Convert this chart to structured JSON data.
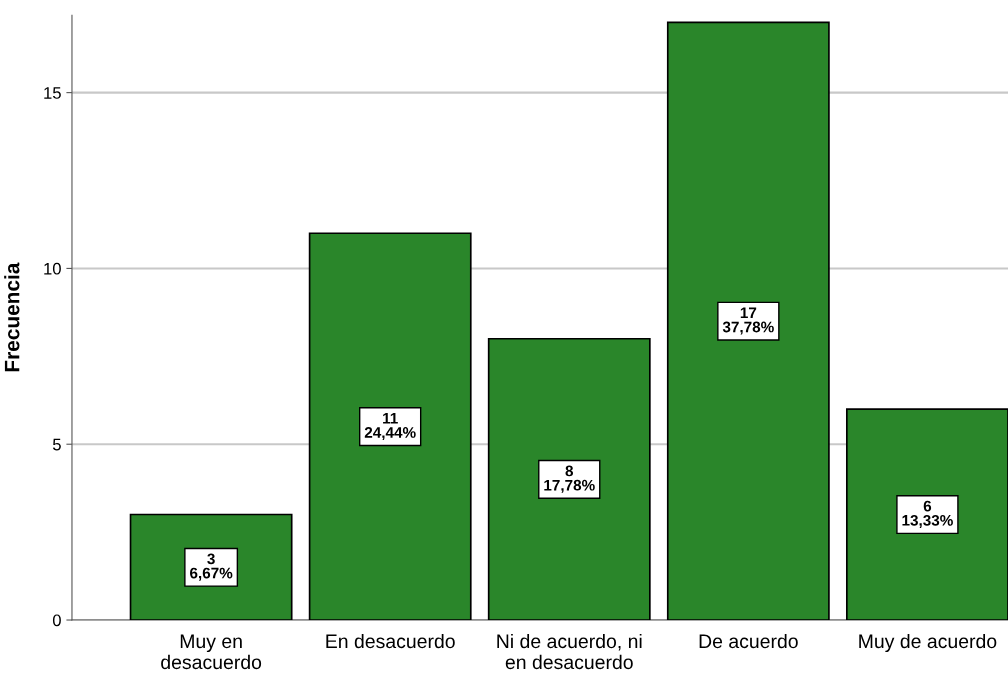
{
  "chart_data": {
    "type": "bar",
    "ylabel": "Frecuencia",
    "categories": [
      "Muy en\ndesacuerdo",
      "En desacuerdo",
      "Ni de acuerdo, ni\nen desacuerdo",
      "De acuerdo",
      "Muy de acuerdo"
    ],
    "values": [
      3,
      11,
      8,
      17,
      6
    ],
    "color": "#2a862a",
    "value_labels": [
      "3\n6,67%",
      "11\n24,44%",
      "8\n17,78%",
      "17\n37,78%",
      "6\n13,33%"
    ],
    "ylim": [
      0,
      17.2
    ],
    "yticks": [
      0,
      5,
      10,
      15
    ],
    "grid": "y",
    "legend": false
  }
}
